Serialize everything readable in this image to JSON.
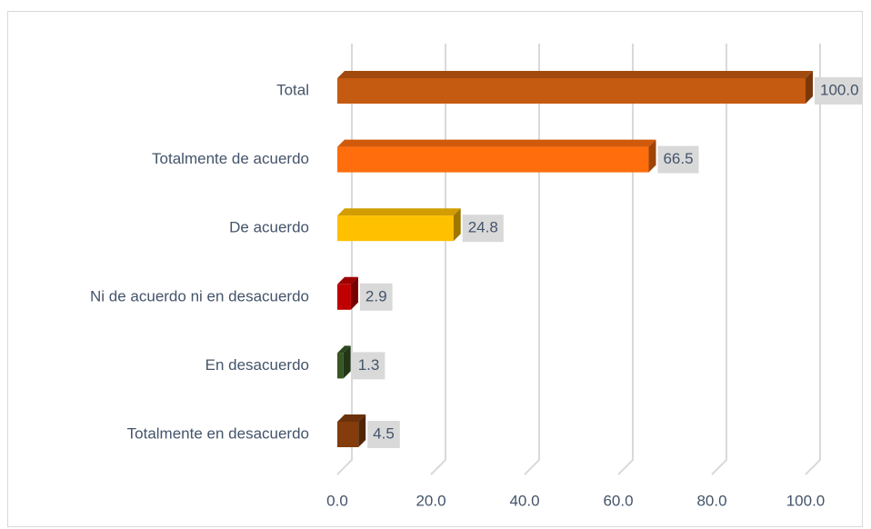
{
  "chart_data": {
    "type": "bar",
    "orientation": "horizontal",
    "categories": [
      "Total",
      "Totalmente de acuerdo",
      "De acuerdo",
      "Ni de acuerdo ni en desacuerdo",
      "En desacuerdo",
      "Totalmente en desacuerdo"
    ],
    "values": [
      100,
      66.5,
      24.8,
      2.9,
      1.3,
      4.5
    ],
    "value_labels": [
      "100.0",
      "66.5",
      "24.8",
      "2.9",
      "1.3",
      "4.5"
    ],
    "colors": [
      "#c55a11",
      "#ff6d0c",
      "#ffc000",
      "#c00000",
      "#375623",
      "#843c0c"
    ],
    "xlim": [
      0,
      100
    ],
    "xticks": [
      {
        "value": 0,
        "label": "0.0"
      },
      {
        "value": 20,
        "label": "20.0"
      },
      {
        "value": 40,
        "label": "40.0"
      },
      {
        "value": 60,
        "label": "60.0"
      },
      {
        "value": 80,
        "label": "80.0"
      },
      {
        "value": 100,
        "label": "100.0"
      }
    ],
    "grid": true
  }
}
